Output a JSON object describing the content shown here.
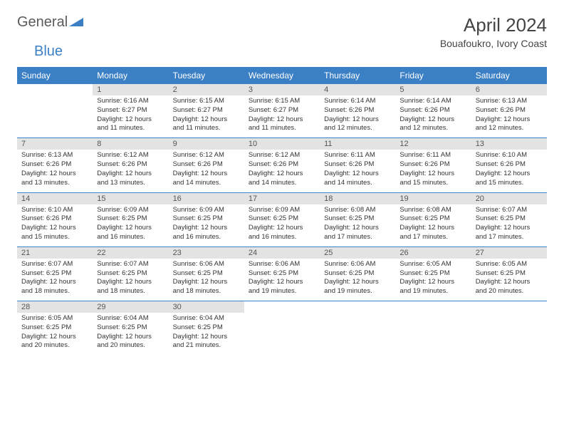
{
  "logo": {
    "word1": "General",
    "word2": "Blue"
  },
  "title": "April 2024",
  "subtitle": "Bouafoukro, Ivory Coast",
  "colors": {
    "accent": "#3b7fc4",
    "header_text": "#ffffff",
    "daynum_bg": "#e3e3e3",
    "text": "#333333",
    "background": "#ffffff"
  },
  "daynames": [
    "Sunday",
    "Monday",
    "Tuesday",
    "Wednesday",
    "Thursday",
    "Friday",
    "Saturday"
  ],
  "start_offset": 1,
  "days": [
    {
      "n": "1",
      "sunrise": "6:16 AM",
      "sunset": "6:27 PM",
      "dl": "12 hours and 11 minutes."
    },
    {
      "n": "2",
      "sunrise": "6:15 AM",
      "sunset": "6:27 PM",
      "dl": "12 hours and 11 minutes."
    },
    {
      "n": "3",
      "sunrise": "6:15 AM",
      "sunset": "6:27 PM",
      "dl": "12 hours and 11 minutes."
    },
    {
      "n": "4",
      "sunrise": "6:14 AM",
      "sunset": "6:26 PM",
      "dl": "12 hours and 12 minutes."
    },
    {
      "n": "5",
      "sunrise": "6:14 AM",
      "sunset": "6:26 PM",
      "dl": "12 hours and 12 minutes."
    },
    {
      "n": "6",
      "sunrise": "6:13 AM",
      "sunset": "6:26 PM",
      "dl": "12 hours and 12 minutes."
    },
    {
      "n": "7",
      "sunrise": "6:13 AM",
      "sunset": "6:26 PM",
      "dl": "12 hours and 13 minutes."
    },
    {
      "n": "8",
      "sunrise": "6:12 AM",
      "sunset": "6:26 PM",
      "dl": "12 hours and 13 minutes."
    },
    {
      "n": "9",
      "sunrise": "6:12 AM",
      "sunset": "6:26 PM",
      "dl": "12 hours and 14 minutes."
    },
    {
      "n": "10",
      "sunrise": "6:12 AM",
      "sunset": "6:26 PM",
      "dl": "12 hours and 14 minutes."
    },
    {
      "n": "11",
      "sunrise": "6:11 AM",
      "sunset": "6:26 PM",
      "dl": "12 hours and 14 minutes."
    },
    {
      "n": "12",
      "sunrise": "6:11 AM",
      "sunset": "6:26 PM",
      "dl": "12 hours and 15 minutes."
    },
    {
      "n": "13",
      "sunrise": "6:10 AM",
      "sunset": "6:26 PM",
      "dl": "12 hours and 15 minutes."
    },
    {
      "n": "14",
      "sunrise": "6:10 AM",
      "sunset": "6:26 PM",
      "dl": "12 hours and 15 minutes."
    },
    {
      "n": "15",
      "sunrise": "6:09 AM",
      "sunset": "6:25 PM",
      "dl": "12 hours and 16 minutes."
    },
    {
      "n": "16",
      "sunrise": "6:09 AM",
      "sunset": "6:25 PM",
      "dl": "12 hours and 16 minutes."
    },
    {
      "n": "17",
      "sunrise": "6:09 AM",
      "sunset": "6:25 PM",
      "dl": "12 hours and 16 minutes."
    },
    {
      "n": "18",
      "sunrise": "6:08 AM",
      "sunset": "6:25 PM",
      "dl": "12 hours and 17 minutes."
    },
    {
      "n": "19",
      "sunrise": "6:08 AM",
      "sunset": "6:25 PM",
      "dl": "12 hours and 17 minutes."
    },
    {
      "n": "20",
      "sunrise": "6:07 AM",
      "sunset": "6:25 PM",
      "dl": "12 hours and 17 minutes."
    },
    {
      "n": "21",
      "sunrise": "6:07 AM",
      "sunset": "6:25 PM",
      "dl": "12 hours and 18 minutes."
    },
    {
      "n": "22",
      "sunrise": "6:07 AM",
      "sunset": "6:25 PM",
      "dl": "12 hours and 18 minutes."
    },
    {
      "n": "23",
      "sunrise": "6:06 AM",
      "sunset": "6:25 PM",
      "dl": "12 hours and 18 minutes."
    },
    {
      "n": "24",
      "sunrise": "6:06 AM",
      "sunset": "6:25 PM",
      "dl": "12 hours and 19 minutes."
    },
    {
      "n": "25",
      "sunrise": "6:06 AM",
      "sunset": "6:25 PM",
      "dl": "12 hours and 19 minutes."
    },
    {
      "n": "26",
      "sunrise": "6:05 AM",
      "sunset": "6:25 PM",
      "dl": "12 hours and 19 minutes."
    },
    {
      "n": "27",
      "sunrise": "6:05 AM",
      "sunset": "6:25 PM",
      "dl": "12 hours and 20 minutes."
    },
    {
      "n": "28",
      "sunrise": "6:05 AM",
      "sunset": "6:25 PM",
      "dl": "12 hours and 20 minutes."
    },
    {
      "n": "29",
      "sunrise": "6:04 AM",
      "sunset": "6:25 PM",
      "dl": "12 hours and 20 minutes."
    },
    {
      "n": "30",
      "sunrise": "6:04 AM",
      "sunset": "6:25 PM",
      "dl": "12 hours and 21 minutes."
    }
  ],
  "labels": {
    "sunrise": "Sunrise:",
    "sunset": "Sunset:",
    "daylight": "Daylight:"
  }
}
